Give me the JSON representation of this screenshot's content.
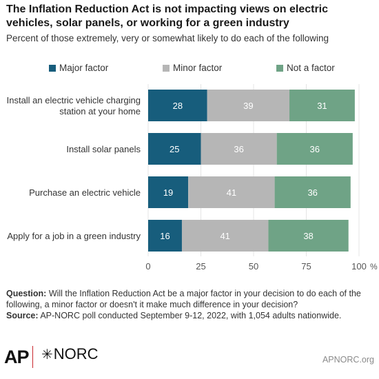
{
  "title": "The Inflation Reduction Act is not impacting views on electric vehicles, solar panels, or working for a green industry",
  "subtitle": "Percent of those extremely, very or somewhat likely to do each of the following",
  "chart_data": {
    "type": "bar",
    "orientation": "horizontal",
    "stacked": true,
    "categories": [
      "Install an electric vehicle charging station at your home",
      "Install solar panels",
      "Purchase an electric vehicle",
      "Apply for a job in a green industry"
    ],
    "series": [
      {
        "name": "Major factor",
        "color": "#175d7c",
        "values": [
          28,
          25,
          19,
          16
        ]
      },
      {
        "name": "Minor factor",
        "color": "#b6b6b6",
        "values": [
          39,
          36,
          41,
          41
        ]
      },
      {
        "name": "Not a factor",
        "color": "#6fa386",
        "values": [
          31,
          36,
          36,
          38
        ]
      }
    ],
    "xlim": [
      0,
      100
    ],
    "xticks": [
      "0",
      "25",
      "50",
      "75",
      "100"
    ],
    "x_unit": "%",
    "legend_position": "top",
    "grid": true,
    "data_labels": true
  },
  "notes": {
    "question_label": "Question:",
    "question_text": " Will the Inflation Reduction Act be a major factor in your decision to do each of the following, a minor factor or doesn't it make much difference in your decision?",
    "source_label": "Source:",
    "source_text": " AP-NORC poll conducted September 9-12, 2022, with 1,054 adults nationwide."
  },
  "footer": {
    "logo_ap": "AP",
    "logo_norc": "NORC",
    "site": "APNORC.org"
  }
}
